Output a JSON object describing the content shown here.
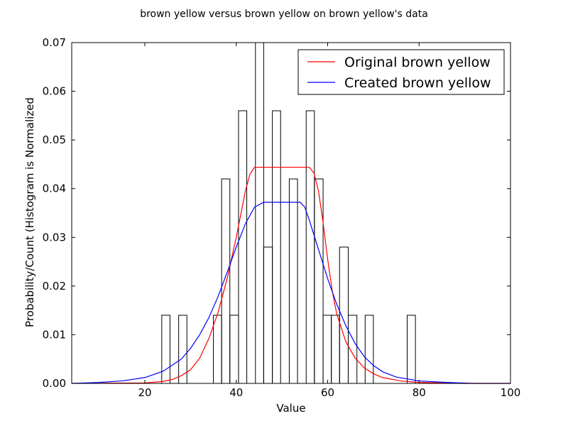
{
  "chart_data": {
    "type": "bar",
    "title": "brown yellow versus brown yellow on brown yellow's data",
    "xlabel": "Value",
    "ylabel": "Probability/Count (Histogram is Normalized",
    "xlim": [
      4,
      100
    ],
    "ylim": [
      0,
      0.07
    ],
    "xticks": [
      20,
      40,
      60,
      80,
      100
    ],
    "yticks": [
      0.0,
      0.01,
      0.02,
      0.03,
      0.04,
      0.05,
      0.06,
      0.07
    ],
    "grid": false,
    "legend_position": "top-right",
    "histogram": {
      "bins": [
        {
          "x0": 23.7,
          "x1": 25.5,
          "value": 0.014
        },
        {
          "x0": 27.4,
          "x1": 29.2,
          "value": 0.014
        },
        {
          "x0": 35.0,
          "x1": 36.8,
          "value": 0.014
        },
        {
          "x0": 36.8,
          "x1": 38.6,
          "value": 0.042
        },
        {
          "x0": 38.6,
          "x1": 40.5,
          "value": 0.014
        },
        {
          "x0": 40.5,
          "x1": 42.3,
          "value": 0.056
        },
        {
          "x0": 44.2,
          "x1": 46.0,
          "value": 0.07
        },
        {
          "x0": 46.0,
          "x1": 47.9,
          "value": 0.028
        },
        {
          "x0": 47.9,
          "x1": 49.7,
          "value": 0.056
        },
        {
          "x0": 51.6,
          "x1": 53.4,
          "value": 0.042
        },
        {
          "x0": 55.3,
          "x1": 57.1,
          "value": 0.056
        },
        {
          "x0": 57.1,
          "x1": 59.0,
          "value": 0.042
        },
        {
          "x0": 59.0,
          "x1": 60.8,
          "value": 0.014
        },
        {
          "x0": 60.8,
          "x1": 62.6,
          "value": 0.014
        },
        {
          "x0": 62.6,
          "x1": 64.5,
          "value": 0.028
        },
        {
          "x0": 64.5,
          "x1": 66.4,
          "value": 0.014
        },
        {
          "x0": 68.2,
          "x1": 70.0,
          "value": 0.014
        },
        {
          "x0": 77.4,
          "x1": 79.2,
          "value": 0.014
        }
      ]
    },
    "series": [
      {
        "name": "Original brown yellow",
        "color": "#ff0000",
        "points": [
          [
            4,
            0
          ],
          [
            20,
            0.0001
          ],
          [
            24,
            0.0004
          ],
          [
            26,
            0.0008
          ],
          [
            28,
            0.0016
          ],
          [
            30,
            0.0028
          ],
          [
            32,
            0.0052
          ],
          [
            34,
            0.0092
          ],
          [
            36,
            0.0145
          ],
          [
            38,
            0.0215
          ],
          [
            40,
            0.03
          ],
          [
            42,
            0.0395
          ],
          [
            43,
            0.043
          ],
          [
            44,
            0.0444
          ],
          [
            50,
            0.0444
          ],
          [
            56,
            0.0444
          ],
          [
            57,
            0.0432
          ],
          [
            58,
            0.0395
          ],
          [
            59,
            0.033
          ],
          [
            60,
            0.0255
          ],
          [
            61,
            0.019
          ],
          [
            62,
            0.0142
          ],
          [
            64,
            0.0085
          ],
          [
            66,
            0.0052
          ],
          [
            68,
            0.0032
          ],
          [
            70,
            0.002
          ],
          [
            72,
            0.0012
          ],
          [
            76,
            0.0005
          ],
          [
            80,
            0.0002
          ],
          [
            90,
            0.0
          ],
          [
            100,
            0.0
          ]
        ]
      },
      {
        "name": "Created brown yellow",
        "color": "#0000ff",
        "points": [
          [
            4,
            0.0
          ],
          [
            10,
            0.0002
          ],
          [
            15,
            0.0005
          ],
          [
            20,
            0.0012
          ],
          [
            24,
            0.0025
          ],
          [
            28,
            0.005
          ],
          [
            30,
            0.0072
          ],
          [
            32,
            0.01
          ],
          [
            34,
            0.0135
          ],
          [
            36,
            0.0178
          ],
          [
            38,
            0.0228
          ],
          [
            40,
            0.028
          ],
          [
            42,
            0.0328
          ],
          [
            44,
            0.0362
          ],
          [
            46,
            0.0372
          ],
          [
            50,
            0.0372
          ],
          [
            54,
            0.0372
          ],
          [
            55,
            0.0362
          ],
          [
            56,
            0.0335
          ],
          [
            58,
            0.0275
          ],
          [
            60,
            0.0215
          ],
          [
            62,
            0.0162
          ],
          [
            64,
            0.0118
          ],
          [
            66,
            0.0082
          ],
          [
            68,
            0.0055
          ],
          [
            70,
            0.0037
          ],
          [
            72,
            0.0024
          ],
          [
            75,
            0.0013
          ],
          [
            80,
            0.0005
          ],
          [
            86,
            0.0002
          ],
          [
            92,
            0.0
          ],
          [
            100,
            0.0
          ]
        ]
      }
    ],
    "legend": [
      "Original brown yellow",
      "Created brown yellow"
    ]
  }
}
